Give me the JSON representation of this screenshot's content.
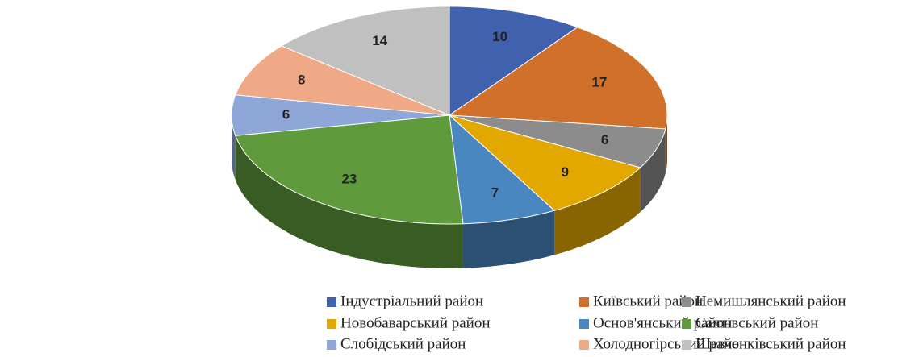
{
  "chart_data": {
    "type": "pie3d",
    "categories": [
      "Індустріальний район",
      "Київський район",
      "Немишлянський район",
      "Новобаварський район",
      "Основ'янський район",
      "Салтівський район",
      "Слобідський район",
      "Холодногірський район",
      "Шевченківський район"
    ],
    "values": [
      10,
      17,
      6,
      9,
      7,
      23,
      6,
      8,
      14
    ],
    "colors": [
      "#4062ae",
      "#d1702b",
      "#8c8c8c",
      "#e3a800",
      "#4a86bf",
      "#5f9a3c",
      "#8ea6d8",
      "#f0a986",
      "#c0c0c0"
    ],
    "legend": "bottom"
  }
}
